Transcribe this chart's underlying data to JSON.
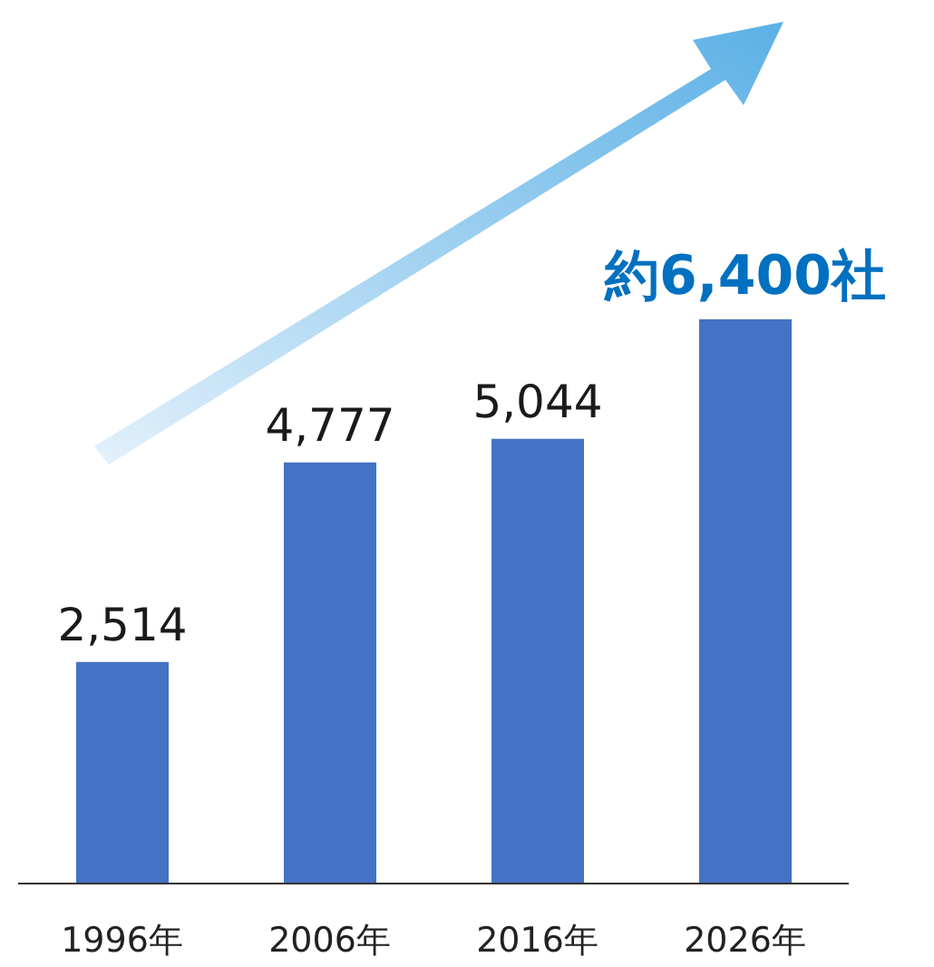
{
  "chart_data": {
    "type": "bar",
    "categories": [
      "1996年",
      "2006年",
      "2016年",
      "2026年"
    ],
    "values": [
      2514,
      4777,
      5044,
      6400
    ],
    "color": "#4472c4",
    "value_labels": [
      "2,514",
      "4,777",
      "5,044",
      "約6,400社"
    ],
    "grid": false,
    "legend": false
  }
}
